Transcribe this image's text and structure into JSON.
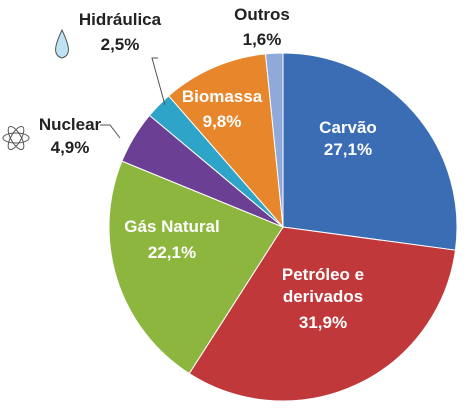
{
  "chart_data": {
    "type": "pie",
    "categories": [
      "Carvão",
      "Petróleo e derivados",
      "Gás Natural",
      "Nuclear",
      "Hidráulica",
      "Biomassa",
      "Outros"
    ],
    "values": [
      27.1,
      31.9,
      22.1,
      4.9,
      2.5,
      9.8,
      1.6
    ],
    "value_labels": [
      "27,1%",
      "31,9%",
      "22,1%",
      "4,9%",
      "2,5%",
      "9,8%",
      "1,6%"
    ],
    "colors": [
      "#3b6db4",
      "#c0383a",
      "#8db63f",
      "#6b3f93",
      "#2ea4c8",
      "#e8862b",
      "#8fa9da"
    ]
  }
}
